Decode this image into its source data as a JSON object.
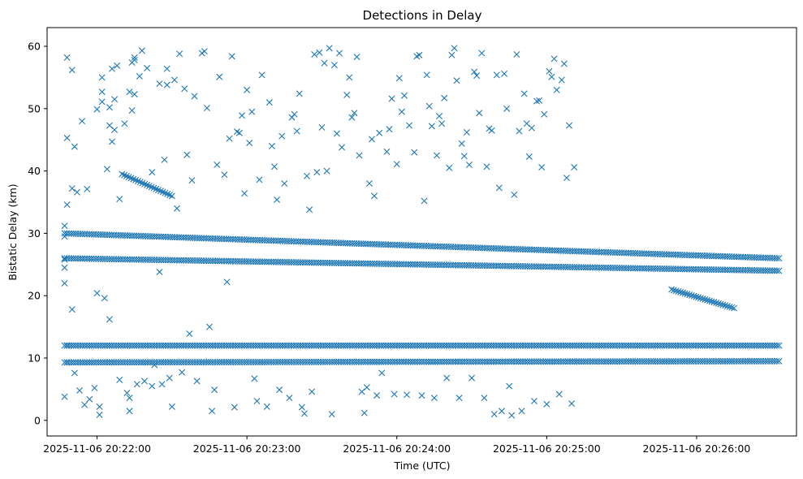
{
  "chart_data": {
    "type": "scatter",
    "title": "Detections in Delay",
    "xlabel": "Time (UTC)",
    "ylabel": "Bistatic Delay (km)",
    "x_ticks": [
      "2025-11-06 20:22:00",
      "2025-11-06 20:23:00",
      "2025-11-06 20:24:00",
      "2025-11-06 20:25:00",
      "2025-11-06 20:26:00"
    ],
    "x_tick_values": [
      "20:22:00",
      "20:23:00",
      "20:24:00",
      "20:25:00",
      "20:26:00"
    ],
    "xlim": [
      "20:21:40",
      "20:26:40"
    ],
    "y_ticks": [
      0,
      10,
      20,
      30,
      40,
      50,
      60
    ],
    "ylim": [
      -2.5,
      63
    ],
    "marker": "x",
    "color": "#1f77b4",
    "grid": false,
    "series": [
      {
        "time_window": [
          "20:21:47",
          "20:26:33"
        ],
        "points": [
          [
            "20:21:47",
            3.8
          ],
          [
            "20:21:47",
            22.0
          ],
          [
            "20:21:47",
            24.5
          ],
          [
            "20:21:47",
            25.8
          ],
          [
            "20:21:47",
            29.5
          ],
          [
            "20:21:47",
            31.2
          ],
          [
            "20:21:48",
            45.3
          ],
          [
            "20:21:48",
            58.2
          ],
          [
            "20:21:48",
            34.6
          ],
          [
            "20:21:48",
            9.3
          ],
          [
            "20:21:48",
            12.0
          ],
          [
            "20:21:50",
            17.8
          ],
          [
            "20:21:50",
            37.2
          ],
          [
            "20:21:50",
            56.2
          ],
          [
            "20:21:51",
            43.9
          ],
          [
            "20:21:51",
            7.6
          ],
          [
            "20:21:52",
            36.6
          ],
          [
            "20:21:53",
            4.8
          ],
          [
            "20:21:54",
            48.0
          ],
          [
            "20:21:55",
            2.5
          ],
          [
            "20:21:56",
            37.1
          ],
          [
            "20:21:57",
            3.4
          ],
          [
            "20:21:59",
            5.2
          ],
          [
            "20:22:00",
            20.4
          ],
          [
            "20:22:00",
            49.9
          ],
          [
            "20:22:01",
            0.9
          ],
          [
            "20:22:01",
            2.2
          ],
          [
            "20:22:02",
            52.7
          ],
          [
            "20:22:02",
            55.0
          ],
          [
            "20:22:02",
            51.1
          ],
          [
            "20:22:03",
            19.6
          ],
          [
            "20:22:04",
            40.3
          ],
          [
            "20:22:05",
            16.2
          ],
          [
            "20:22:05",
            47.3
          ],
          [
            "20:22:05",
            50.2
          ],
          [
            "20:22:06",
            56.4
          ],
          [
            "20:22:06",
            44.7
          ],
          [
            "20:22:07",
            46.6
          ],
          [
            "20:22:07",
            51.5
          ],
          [
            "20:22:08",
            56.9
          ],
          [
            "20:22:09",
            6.5
          ],
          [
            "20:22:09",
            35.5
          ],
          [
            "20:22:11",
            47.6
          ],
          [
            "20:22:12",
            4.4
          ],
          [
            "20:22:13",
            3.6
          ],
          [
            "20:22:13",
            52.7
          ],
          [
            "20:22:13",
            1.5
          ],
          [
            "20:22:14",
            57.4
          ],
          [
            "20:22:14",
            49.7
          ],
          [
            "20:22:15",
            58.2
          ],
          [
            "20:22:15",
            52.3
          ],
          [
            "20:22:15",
            57.8
          ],
          [
            "20:22:16",
            5.8
          ],
          [
            "20:22:17",
            55.2
          ],
          [
            "20:22:18",
            59.3
          ],
          [
            "20:22:19",
            6.3
          ],
          [
            "20:22:20",
            56.5
          ],
          [
            "20:22:22",
            5.5
          ],
          [
            "20:22:22",
            39.8
          ],
          [
            "20:22:23",
            8.9
          ],
          [
            "20:22:25",
            54.0
          ],
          [
            "20:22:25",
            23.8
          ],
          [
            "20:22:26",
            5.8
          ],
          [
            "20:22:27",
            41.8
          ],
          [
            "20:22:28",
            53.8
          ],
          [
            "20:22:28",
            56.4
          ],
          [
            "20:22:29",
            6.8
          ],
          [
            "20:22:30",
            2.2
          ],
          [
            "20:22:31",
            54.6
          ],
          [
            "20:22:32",
            34.0
          ],
          [
            "20:22:33",
            58.8
          ],
          [
            "20:22:34",
            7.7
          ],
          [
            "20:22:35",
            53.2
          ],
          [
            "20:22:36",
            42.6
          ],
          [
            "20:22:37",
            13.9
          ],
          [
            "20:22:38",
            38.5
          ],
          [
            "20:22:39",
            52.0
          ],
          [
            "20:22:40",
            6.3
          ],
          [
            "20:22:42",
            58.9
          ],
          [
            "20:22:43",
            59.2
          ],
          [
            "20:22:44",
            50.1
          ],
          [
            "20:22:45",
            15.0
          ],
          [
            "20:22:46",
            1.5
          ],
          [
            "20:22:47",
            4.9
          ],
          [
            "20:22:48",
            41.0
          ],
          [
            "20:22:49",
            55.1
          ],
          [
            "20:22:51",
            39.4
          ],
          [
            "20:22:52",
            22.2
          ],
          [
            "20:22:53",
            45.2
          ],
          [
            "20:22:54",
            58.4
          ],
          [
            "20:22:55",
            2.1
          ],
          [
            "20:22:56",
            46.3
          ],
          [
            "20:22:57",
            46.1
          ],
          [
            "20:22:58",
            48.9
          ],
          [
            "20:22:59",
            36.4
          ],
          [
            "20:23:00",
            53.0
          ],
          [
            "20:23:01",
            44.5
          ],
          [
            "20:23:02",
            49.5
          ],
          [
            "20:23:03",
            6.7
          ],
          [
            "20:23:04",
            3.1
          ],
          [
            "20:23:05",
            38.6
          ],
          [
            "20:23:06",
            55.4
          ],
          [
            "20:23:08",
            2.2
          ],
          [
            "20:23:09",
            51.0
          ],
          [
            "20:23:10",
            44.0
          ],
          [
            "20:23:11",
            40.7
          ],
          [
            "20:23:12",
            35.4
          ],
          [
            "20:23:13",
            4.9
          ],
          [
            "20:23:14",
            45.6
          ],
          [
            "20:23:15",
            38.0
          ],
          [
            "20:23:17",
            3.6
          ],
          [
            "20:23:18",
            48.6
          ],
          [
            "20:23:19",
            49.1
          ],
          [
            "20:23:20",
            46.4
          ],
          [
            "20:23:21",
            52.4
          ],
          [
            "20:23:22",
            2.1
          ],
          [
            "20:23:23",
            1.1
          ],
          [
            "20:23:24",
            39.2
          ],
          [
            "20:23:25",
            33.8
          ],
          [
            "20:23:26",
            4.6
          ],
          [
            "20:23:27",
            58.7
          ],
          [
            "20:23:28",
            39.8
          ],
          [
            "20:23:29",
            59.0
          ],
          [
            "20:23:30",
            47.0
          ],
          [
            "20:23:31",
            57.3
          ],
          [
            "20:23:32",
            40.0
          ],
          [
            "20:23:33",
            59.7
          ],
          [
            "20:23:34",
            1.0
          ],
          [
            "20:23:35",
            57.0
          ],
          [
            "20:23:36",
            46.0
          ],
          [
            "20:23:37",
            58.9
          ],
          [
            "20:23:38",
            43.8
          ],
          [
            "20:23:40",
            52.2
          ],
          [
            "20:23:41",
            55.0
          ],
          [
            "20:23:42",
            48.6
          ],
          [
            "20:23:43",
            49.3
          ],
          [
            "20:23:44",
            58.3
          ],
          [
            "20:23:45",
            42.5
          ],
          [
            "20:23:46",
            4.6
          ],
          [
            "20:23:47",
            1.2
          ],
          [
            "20:23:48",
            5.3
          ],
          [
            "20:23:49",
            38.0
          ],
          [
            "20:23:50",
            45.1
          ],
          [
            "20:23:51",
            36.0
          ],
          [
            "20:23:52",
            4.0
          ],
          [
            "20:23:53",
            46.1
          ],
          [
            "20:23:54",
            7.6
          ],
          [
            "20:23:56",
            43.1
          ],
          [
            "20:23:57",
            46.7
          ],
          [
            "20:23:58",
            51.6
          ],
          [
            "20:23:59",
            4.2
          ],
          [
            "20:24:00",
            41.1
          ],
          [
            "20:24:01",
            54.9
          ],
          [
            "20:24:02",
            49.5
          ],
          [
            "20:24:03",
            52.1
          ],
          [
            "20:24:04",
            4.1
          ],
          [
            "20:24:05",
            47.3
          ],
          [
            "20:24:07",
            43.0
          ],
          [
            "20:24:08",
            58.4
          ],
          [
            "20:24:09",
            58.6
          ],
          [
            "20:24:10",
            4.0
          ],
          [
            "20:24:11",
            35.2
          ],
          [
            "20:24:12",
            55.4
          ],
          [
            "20:24:13",
            50.4
          ],
          [
            "20:24:14",
            47.2
          ],
          [
            "20:24:15",
            3.6
          ],
          [
            "20:24:16",
            42.5
          ],
          [
            "20:24:17",
            48.8
          ],
          [
            "20:24:18",
            47.6
          ],
          [
            "20:24:19",
            51.7
          ],
          [
            "20:24:20",
            6.8
          ],
          [
            "20:24:21",
            40.5
          ],
          [
            "20:24:22",
            58.6
          ],
          [
            "20:24:23",
            59.7
          ],
          [
            "20:24:24",
            54.5
          ],
          [
            "20:24:25",
            3.6
          ],
          [
            "20:24:26",
            44.4
          ],
          [
            "20:24:27",
            42.4
          ],
          [
            "20:24:28",
            46.2
          ],
          [
            "20:24:29",
            41.0
          ],
          [
            "20:24:30",
            6.8
          ],
          [
            "20:24:31",
            55.9
          ],
          [
            "20:24:32",
            55.3
          ],
          [
            "20:24:33",
            49.3
          ],
          [
            "20:24:34",
            58.9
          ],
          [
            "20:24:35",
            3.6
          ],
          [
            "20:24:36",
            40.7
          ],
          [
            "20:24:37",
            46.8
          ],
          [
            "20:24:38",
            46.5
          ],
          [
            "20:24:39",
            1.0
          ],
          [
            "20:24:40",
            55.4
          ],
          [
            "20:24:41",
            37.3
          ],
          [
            "20:24:42",
            1.5
          ],
          [
            "20:24:43",
            55.6
          ],
          [
            "20:24:44",
            50.0
          ],
          [
            "20:24:45",
            5.5
          ],
          [
            "20:24:46",
            0.8
          ],
          [
            "20:24:47",
            36.2
          ],
          [
            "20:24:48",
            58.7
          ],
          [
            "20:24:49",
            46.4
          ],
          [
            "20:24:50",
            1.5
          ],
          [
            "20:24:51",
            52.4
          ],
          [
            "20:24:52",
            47.6
          ],
          [
            "20:24:53",
            42.3
          ],
          [
            "20:24:54",
            46.9
          ],
          [
            "20:24:55",
            3.1
          ],
          [
            "20:24:56",
            51.2
          ],
          [
            "20:24:57",
            51.3
          ],
          [
            "20:24:58",
            40.6
          ],
          [
            "20:24:59",
            49.1
          ],
          [
            "20:25:00",
            2.6
          ],
          [
            "20:25:01",
            56.0
          ],
          [
            "20:25:02",
            55.1
          ],
          [
            "20:25:03",
            58.0
          ],
          [
            "20:25:04",
            53.0
          ],
          [
            "20:25:05",
            4.2
          ],
          [
            "20:25:06",
            54.6
          ],
          [
            "20:25:07",
            57.2
          ],
          [
            "20:25:08",
            38.9
          ],
          [
            "20:25:09",
            47.3
          ],
          [
            "20:25:10",
            2.7
          ],
          [
            "20:25:11",
            40.6
          ]
        ]
      }
    ],
    "bands": [
      {
        "t_start": "20:21:47",
        "t_end": "20:26:33",
        "y_start": 12.0,
        "y_end": 12.0,
        "note": ""
      },
      {
        "t_start": "20:21:47",
        "t_end": "20:26:33",
        "y_start": 9.3,
        "y_end": 9.5
      },
      {
        "t_start": "20:21:47",
        "t_end": "20:26:33",
        "y_start": 26.0,
        "y_end": 24.0
      },
      {
        "t_start": "20:21:47",
        "t_end": "20:26:33",
        "y_start": 30.0,
        "y_end": 26.0
      },
      {
        "t_start": "20:22:10",
        "t_end": "20:22:30",
        "y_start": 39.5,
        "y_end": 36.0
      },
      {
        "t_start": "20:25:50",
        "t_end": "20:26:15",
        "y_start": 21.0,
        "y_end": 18.0
      }
    ]
  }
}
